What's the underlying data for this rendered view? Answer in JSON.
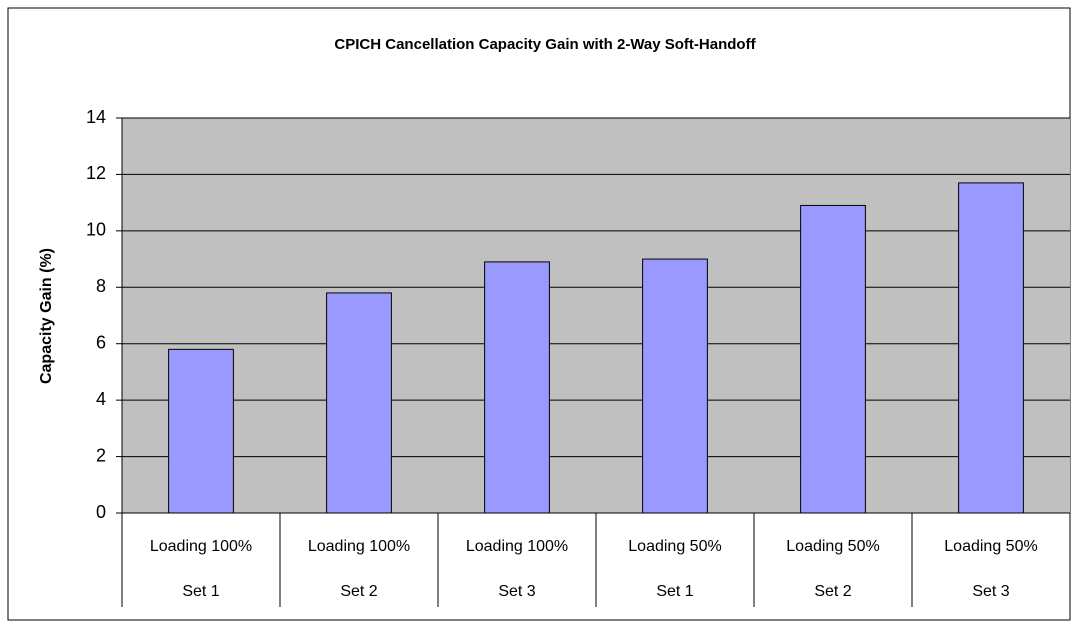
{
  "chart_data": {
    "type": "bar",
    "title": "CPICH Cancellation Capacity Gain with 2-Way Soft-Handoff",
    "y_label": "Capacity Gain (%)",
    "categories": [
      "Loading 100%",
      "Loading 100%",
      "Loading 100%",
      "Loading 50%",
      "Loading 50%",
      "Loading 50%"
    ],
    "subcategories": [
      "Set 1",
      "Set 2",
      "Set 3",
      "Set 1",
      "Set 2",
      "Set 3"
    ],
    "values": [
      5.8,
      7.8,
      8.9,
      9.0,
      10.9,
      11.7
    ],
    "color": "#9999ff",
    "ylim": [
      0,
      14
    ],
    "yticks": [
      0,
      2,
      4,
      6,
      8,
      10,
      12,
      14
    ],
    "grid": true
  }
}
